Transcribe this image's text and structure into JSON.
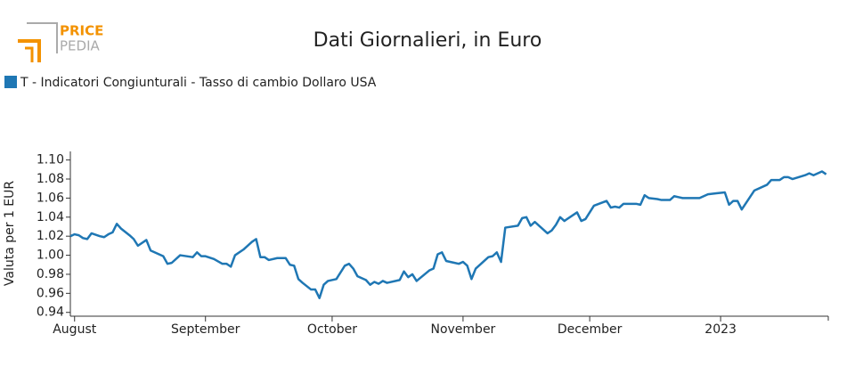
{
  "logo": {
    "line1": "PRICE",
    "line2": "PEDIA"
  },
  "chart_data": {
    "type": "line",
    "title": "Dati Giornalieri, in Euro",
    "y_label": "Valuta per 1 EUR",
    "x": [
      -1,
      0,
      1,
      2,
      3,
      4,
      6,
      7,
      8,
      9,
      10,
      11,
      13,
      14,
      15,
      17,
      18,
      21,
      22,
      23,
      25,
      28,
      29,
      30,
      31,
      33,
      35,
      36,
      37,
      38,
      40,
      42,
      43,
      44,
      45,
      46,
      48,
      50,
      51,
      52,
      53,
      54,
      56,
      57,
      58,
      59,
      60,
      62,
      64,
      65,
      66,
      67,
      69,
      70,
      71,
      72,
      73,
      74,
      77,
      78,
      79,
      80,
      81,
      84,
      85,
      86,
      87,
      88,
      91,
      92,
      93,
      94,
      95,
      98,
      99,
      100,
      101,
      102,
      105,
      106,
      107,
      108,
      109,
      112,
      113,
      114,
      115,
      116,
      119,
      120,
      121,
      123,
      126,
      127,
      128,
      129,
      130,
      133,
      134,
      135,
      136,
      138,
      139,
      141,
      142,
      144,
      148,
      150,
      152,
      154,
      155,
      156,
      157,
      158,
      161,
      164,
      165,
      167,
      168,
      169,
      170,
      173,
      174,
      175,
      176,
      177,
      178
    ],
    "series": [
      {
        "name": "T - Indicatori Congiunturali - Tasso di cambio Dollaro USA",
        "color": "#1f77b4",
        "values": [
          1.02,
          1.022,
          1.021,
          1.018,
          1.017,
          1.023,
          1.02,
          1.019,
          1.022,
          1.024,
          1.033,
          1.028,
          1.021,
          1.017,
          1.01,
          1.016,
          1.005,
          0.999,
          0.991,
          0.992,
          1.0,
          0.998,
          1.003,
          0.999,
          0.999,
          0.996,
          0.991,
          0.991,
          0.988,
          1.0,
          1.006,
          1.014,
          1.017,
          0.998,
          0.998,
          0.995,
          0.997,
          0.997,
          0.99,
          0.989,
          0.975,
          0.971,
          0.964,
          0.964,
          0.955,
          0.969,
          0.973,
          0.975,
          0.989,
          0.991,
          0.986,
          0.978,
          0.974,
          0.969,
          0.972,
          0.97,
          0.973,
          0.971,
          0.974,
          0.983,
          0.977,
          0.98,
          0.973,
          0.984,
          0.986,
          1.001,
          1.003,
          0.994,
          0.991,
          0.993,
          0.989,
          0.975,
          0.986,
          0.998,
          0.999,
          1.003,
          0.993,
          1.029,
          1.031,
          1.039,
          1.04,
          1.031,
          1.035,
          1.023,
          1.026,
          1.032,
          1.04,
          1.036,
          1.045,
          1.036,
          1.038,
          1.052,
          1.057,
          1.05,
          1.051,
          1.05,
          1.054,
          1.054,
          1.053,
          1.063,
          1.06,
          1.059,
          1.058,
          1.058,
          1.062,
          1.06,
          1.06,
          1.064,
          1.065,
          1.066,
          1.053,
          1.057,
          1.057,
          1.048,
          1.068,
          1.074,
          1.079,
          1.079,
          1.082,
          1.082,
          1.08,
          1.084,
          1.086,
          1.084,
          1.086,
          1.088,
          1.085
        ]
      }
    ],
    "xlim": [
      -1,
      178.5
    ],
    "xticks": [
      {
        "value": 0,
        "label": "August"
      },
      {
        "value": 31,
        "label": "September"
      },
      {
        "value": 61,
        "label": "October"
      },
      {
        "value": 92,
        "label": "November"
      },
      {
        "value": 122,
        "label": "December"
      },
      {
        "value": 153,
        "label": "2023"
      }
    ],
    "ylim": [
      0.936,
      1.109
    ],
    "yticks": [
      0.94,
      0.96,
      0.98,
      {
        "value": 1,
        "label": "1.00"
      },
      1.02,
      1.04,
      1.06,
      1.08,
      {
        "value": 1.1,
        "label": "1.10"
      }
    ],
    "grid": false,
    "legend": "top-left"
  }
}
